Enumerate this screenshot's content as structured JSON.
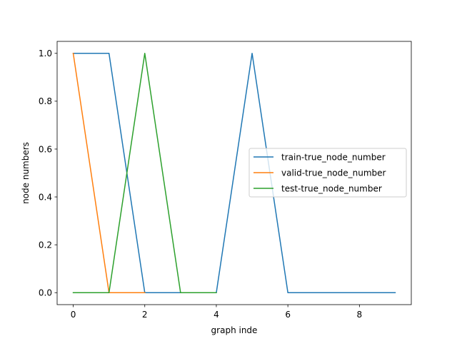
{
  "chart_data": {
    "type": "line",
    "title": "",
    "xlabel": "graph inde",
    "ylabel": "node numbers",
    "xlim": [
      -0.45,
      9.45
    ],
    "ylim": [
      -0.05,
      1.05
    ],
    "xticks": [
      0,
      2,
      4,
      6,
      8
    ],
    "xtick_labels": [
      "0",
      "2",
      "4",
      "6",
      "8"
    ],
    "yticks": [
      0.0,
      0.2,
      0.4,
      0.6,
      0.8,
      1.0
    ],
    "ytick_labels": [
      "0.0",
      "0.2",
      "0.4",
      "0.6",
      "0.8",
      "1.0"
    ],
    "grid": false,
    "legend_position": "center-right",
    "series": [
      {
        "name": "train-true_node_number",
        "color": "#1f77b4",
        "x": [
          0,
          1,
          2,
          3,
          4,
          5,
          6,
          7,
          8,
          9
        ],
        "y": [
          1,
          1,
          0,
          0,
          0,
          1,
          0,
          0,
          0,
          0
        ]
      },
      {
        "name": "valid-true_node_number",
        "color": "#ff7f0e",
        "x": [
          0,
          1,
          2
        ],
        "y": [
          1,
          0,
          0
        ]
      },
      {
        "name": "test-true_node_number",
        "color": "#2ca02c",
        "x": [
          0,
          1,
          2,
          3,
          4
        ],
        "y": [
          0,
          0,
          1,
          0,
          0
        ]
      }
    ]
  }
}
